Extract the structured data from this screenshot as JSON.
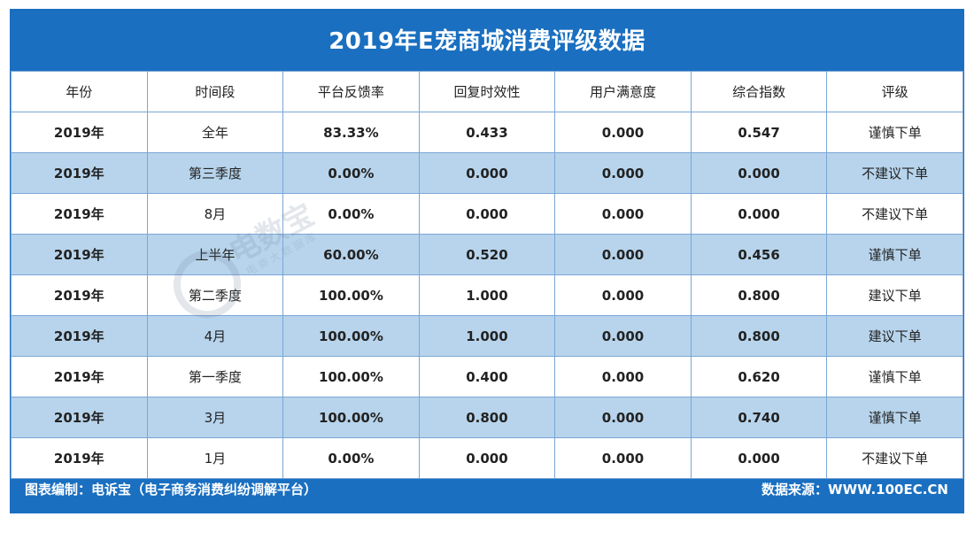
{
  "title": "2019年E宠商城消费评级数据",
  "columns": [
    "年份",
    "时间段",
    "平台反馈率",
    "回复时效性",
    "用户满意度",
    "综合指数",
    "评级"
  ],
  "rows": [
    [
      "2019年",
      "全年",
      "83.33%",
      "0.433",
      "0.000",
      "0.547",
      "谨慎下单"
    ],
    [
      "2019年",
      "第三季度",
      "0.00%",
      "0.000",
      "0.000",
      "0.000",
      "不建议下单"
    ],
    [
      "2019年",
      "8月",
      "0.00%",
      "0.000",
      "0.000",
      "0.000",
      "不建议下单"
    ],
    [
      "2019年",
      "上半年",
      "60.00%",
      "0.520",
      "0.000",
      "0.456",
      "谨慎下单"
    ],
    [
      "2019年",
      "第二季度",
      "100.00%",
      "1.000",
      "0.000",
      "0.800",
      "建议下单"
    ],
    [
      "2019年",
      "4月",
      "100.00%",
      "1.000",
      "0.000",
      "0.800",
      "建议下单"
    ],
    [
      "2019年",
      "第一季度",
      "100.00%",
      "0.400",
      "0.000",
      "0.620",
      "谨慎下单"
    ],
    [
      "2019年",
      "3月",
      "100.00%",
      "0.800",
      "0.000",
      "0.740",
      "谨慎下单"
    ],
    [
      "2019年",
      "1月",
      "0.00%",
      "0.000",
      "0.000",
      "0.000",
      "不建议下单"
    ]
  ],
  "footer": {
    "left": "图表编制：电诉宝（电子商务消费纠纷调解平台）",
    "right": "数据来源：WWW.100EC.CN"
  },
  "watermark": {
    "big": "电数宝",
    "small": "电商大数据库",
    "logo": "ebi"
  },
  "colors": {
    "frame": "#1a6fc0",
    "alt_row": "#b7d4ec",
    "border": "#7aa6d6"
  }
}
